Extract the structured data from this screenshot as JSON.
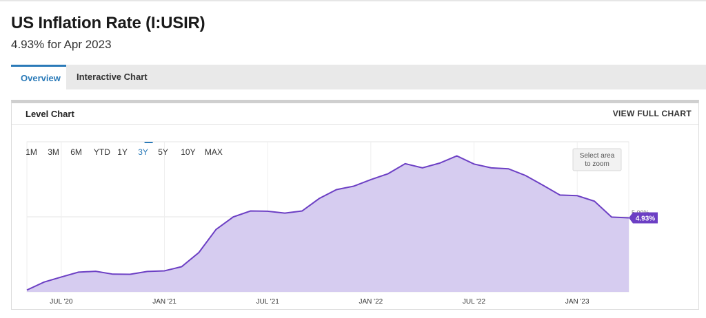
{
  "header": {
    "title": "US Inflation Rate (I:USIR)",
    "subtitle": "4.93% for Apr 2023"
  },
  "tabs": [
    {
      "label": "Overview",
      "active": true
    },
    {
      "label": "Interactive Chart",
      "active": false
    }
  ],
  "card": {
    "title": "Level Chart",
    "link_label": "VIEW FULL CHART"
  },
  "ranges": [
    {
      "label": "1M"
    },
    {
      "label": "3M"
    },
    {
      "label": "6M"
    },
    {
      "label": "YTD"
    },
    {
      "label": "1Y"
    },
    {
      "label": "3Y",
      "active": true
    },
    {
      "label": "5Y"
    },
    {
      "label": "10Y"
    },
    {
      "label": "MAX"
    }
  ],
  "zoom_hint": [
    "Select area",
    "to zoom"
  ],
  "colors": {
    "accent": "#2a7ab8",
    "series_line": "#6c3fc4",
    "series_fill": "#d6ccf0",
    "badge": "#6c3fc4"
  },
  "chart_data": {
    "type": "area",
    "series": [
      {
        "values": [
          {
            "x": "2020-05",
            "y": 0.12
          },
          {
            "x": "2020-06",
            "y": 0.65
          },
          {
            "x": "2020-07",
            "y": 0.99
          },
          {
            "x": "2020-08",
            "y": 1.31
          },
          {
            "x": "2020-09",
            "y": 1.37
          },
          {
            "x": "2020-10",
            "y": 1.18
          },
          {
            "x": "2020-11",
            "y": 1.17
          },
          {
            "x": "2020-12",
            "y": 1.36
          },
          {
            "x": "2021-01",
            "y": 1.4
          },
          {
            "x": "2021-02",
            "y": 1.68
          },
          {
            "x": "2021-03",
            "y": 2.62
          },
          {
            "x": "2021-04",
            "y": 4.16
          },
          {
            "x": "2021-05",
            "y": 4.99
          },
          {
            "x": "2021-06",
            "y": 5.39
          },
          {
            "x": "2021-07",
            "y": 5.37
          },
          {
            "x": "2021-08",
            "y": 5.25
          },
          {
            "x": "2021-09",
            "y": 5.39
          },
          {
            "x": "2021-10",
            "y": 6.22
          },
          {
            "x": "2021-11",
            "y": 6.81
          },
          {
            "x": "2021-12",
            "y": 7.04
          },
          {
            "x": "2022-01",
            "y": 7.48
          },
          {
            "x": "2022-02",
            "y": 7.87
          },
          {
            "x": "2022-03",
            "y": 8.54
          },
          {
            "x": "2022-04",
            "y": 8.26
          },
          {
            "x": "2022-05",
            "y": 8.58
          },
          {
            "x": "2022-06",
            "y": 9.06
          },
          {
            "x": "2022-07",
            "y": 8.52
          },
          {
            "x": "2022-08",
            "y": 8.26
          },
          {
            "x": "2022-09",
            "y": 8.2
          },
          {
            "x": "2022-10",
            "y": 7.75
          },
          {
            "x": "2022-11",
            "y": 7.11
          },
          {
            "x": "2022-12",
            "y": 6.45
          },
          {
            "x": "2023-01",
            "y": 6.41
          },
          {
            "x": "2023-02",
            "y": 6.04
          },
          {
            "x": "2023-03",
            "y": 4.98
          },
          {
            "x": "2023-04",
            "y": 4.93
          }
        ]
      }
    ],
    "x_ticks": [
      {
        "label": "JUL '20",
        "x": "2020-07"
      },
      {
        "label": "JAN '21",
        "x": "2021-01"
      },
      {
        "label": "JUL '21",
        "x": "2021-07"
      },
      {
        "label": "JAN '22",
        "x": "2022-01"
      },
      {
        "label": "JUL '22",
        "x": "2022-07"
      },
      {
        "label": "JAN '23",
        "x": "2023-01"
      }
    ],
    "y_gridlines": [
      5,
      10
    ],
    "y_grid_label": "5.00%",
    "last_value_label": "4.93%",
    "xlim": [
      "2020-05",
      "2023-04"
    ],
    "ylim": [
      0,
      10
    ],
    "grid": true
  }
}
